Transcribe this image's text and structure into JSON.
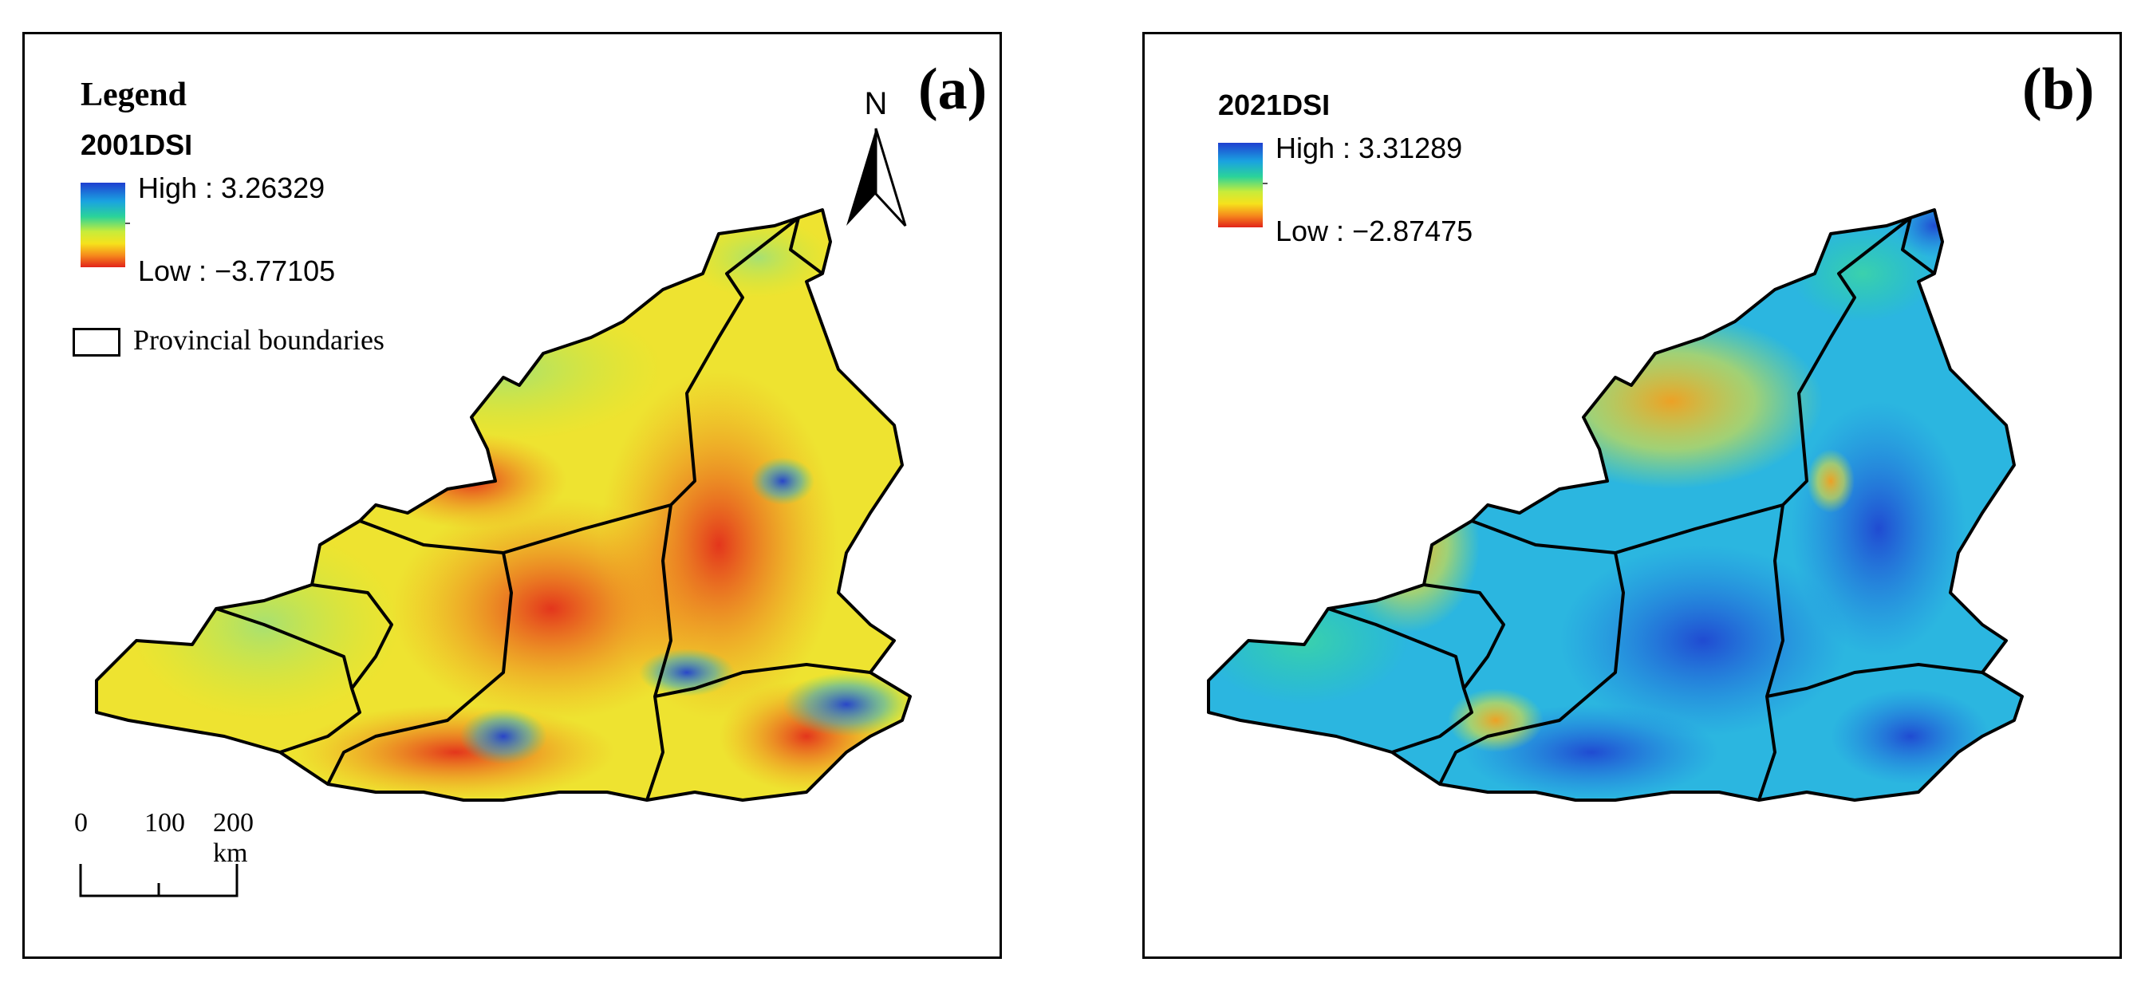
{
  "figure": {
    "panels": [
      {
        "id": "a",
        "label": "(a)",
        "legend_title": "Legend",
        "index_title": "2001DSI",
        "high_label": "High : 3.26329",
        "low_label": "Low : −3.77105",
        "boundary_label": "Provincial boundaries",
        "north_label": "N",
        "scale": {
          "labels": [
            "0",
            "100",
            "200 km"
          ]
        }
      },
      {
        "id": "b",
        "label": "(b)",
        "index_title": "2021DSI",
        "high_label": "High : 3.31289",
        "low_label": "Low : −2.87475"
      }
    ]
  },
  "colors": {
    "ramp_high": "#1f3fd0",
    "ramp_mid": "#2ad39a",
    "ramp_yellow": "#f6e21c",
    "ramp_low": "#e2221a",
    "boundary": "#000000"
  }
}
